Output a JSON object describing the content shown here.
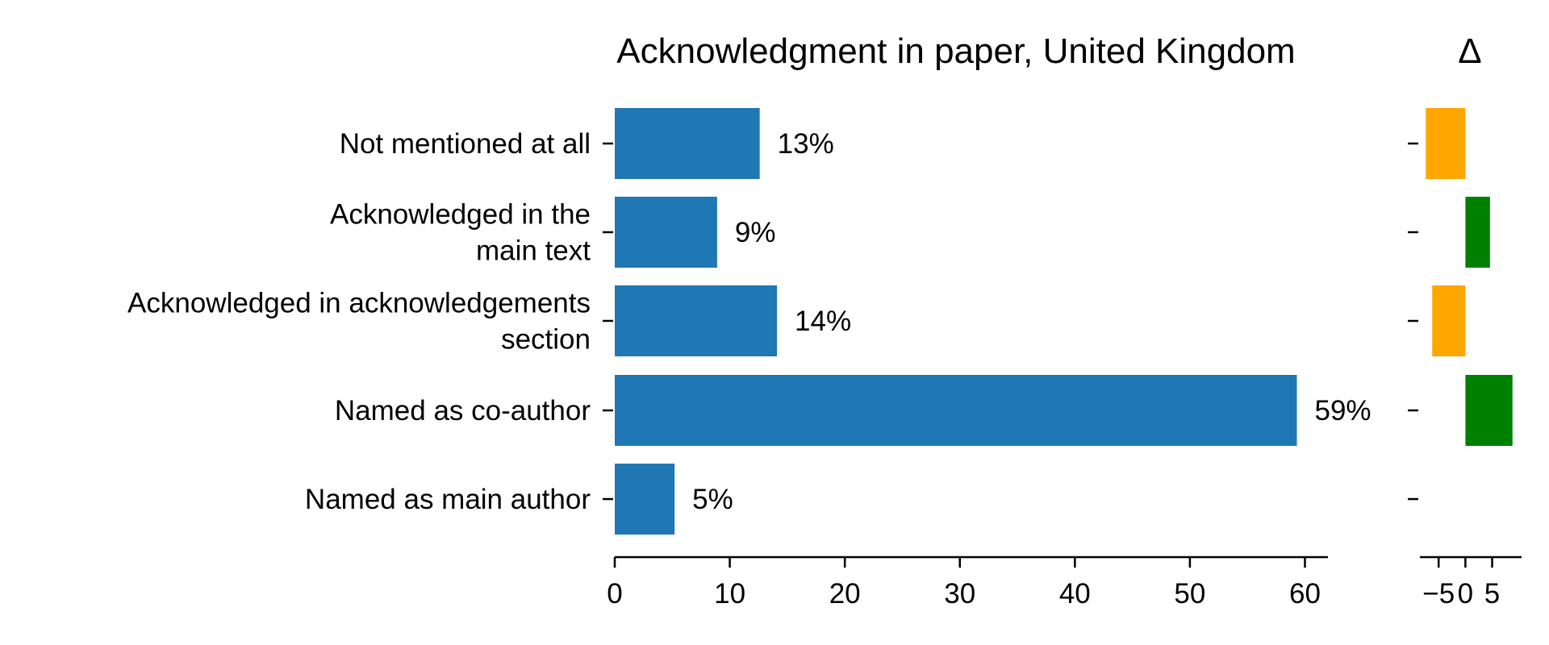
{
  "chart_data": [
    {
      "type": "bar",
      "orientation": "horizontal",
      "title": "Acknowledgment in paper, United Kingdom",
      "xlabel": "",
      "ylabel": "",
      "categories": [
        [
          "Not mentioned at all"
        ],
        [
          "Acknowledged in the",
          "main text"
        ],
        [
          "Acknowledged in acknowledgements",
          "section"
        ],
        [
          "Named as co-author"
        ],
        [
          "Named as main author"
        ]
      ],
      "values": [
        12.6,
        8.9,
        14.1,
        59.3,
        5.2
      ],
      "value_labels": [
        "13%",
        "9%",
        "14%",
        "59%",
        "5%"
      ],
      "xlim": [
        0,
        62
      ],
      "xticks": [
        0,
        10,
        20,
        30,
        40,
        50,
        60
      ],
      "xtick_labels": [
        "0",
        "10",
        "20",
        "30",
        "40",
        "50",
        "60"
      ],
      "grid": false,
      "color": "#1f77b4"
    },
    {
      "type": "bar",
      "orientation": "horizontal",
      "title": "Δ",
      "xlabel": "",
      "ylabel": "",
      "categories": [
        "Not mentioned at all",
        "Acknowledged in the main text",
        "Acknowledged in acknowledgements section",
        "Named as co-author",
        "Named as main author"
      ],
      "values": [
        -7.4,
        4.6,
        -6.2,
        8.8,
        0
      ],
      "xlim": [
        -8.5,
        10.5
      ],
      "xticks": [
        -5,
        0,
        5
      ],
      "xtick_labels": [
        "−5",
        "0",
        "5"
      ],
      "grid": false,
      "positive_color": "#008000",
      "negative_color": "#ffa500"
    }
  ]
}
